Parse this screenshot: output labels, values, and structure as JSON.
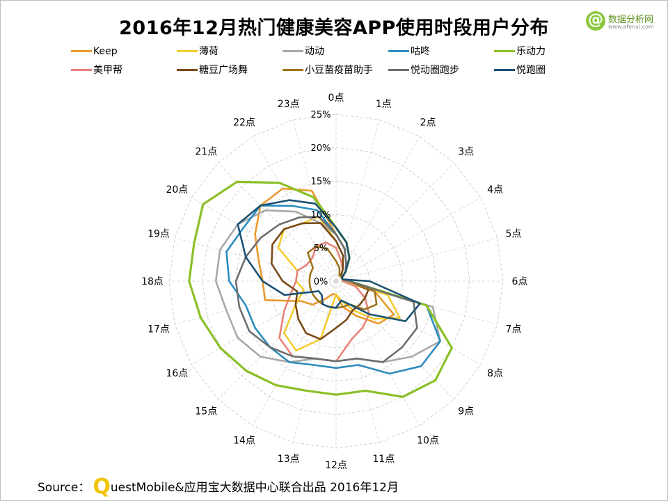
{
  "title": "2016年12月热门健康美容APP使用时段用户分布",
  "brand": {
    "name": "数据分析网",
    "url": "www.afenxi.com",
    "accent": "#8dc63f",
    "icon": "at-sign-icon"
  },
  "source": {
    "prefix": "Source：",
    "q_letter": "Q",
    "rest": "uestMobile&应用宝大数据中心联合出品 2016年12月",
    "q_color": "#f2c400"
  },
  "chart_data": {
    "type": "radar",
    "categories": [
      "0点",
      "1点",
      "2点",
      "3点",
      "4点",
      "5点",
      "6点",
      "7点",
      "8点",
      "9点",
      "10点",
      "11点",
      "12点",
      "13点",
      "14点",
      "15点",
      "16点",
      "17点",
      "18点",
      "19点",
      "20点",
      "21点",
      "22点",
      "23点"
    ],
    "radial_ticks": [
      "0%",
      "5%",
      "10%",
      "15%",
      "20%",
      "25%"
    ],
    "rmax": 25,
    "grid": true,
    "legend": "top",
    "series": [
      {
        "name": "Keep",
        "color": "#e99a2c",
        "values": [
          7,
          5,
          3,
          2,
          1,
          1,
          1,
          6,
          10,
          9,
          6,
          4,
          2,
          2,
          3,
          5,
          6,
          11,
          11,
          12,
          14,
          16,
          16,
          14
        ]
      },
      {
        "name": "薄荷",
        "color": "#f5cc2e",
        "values": [
          6,
          4,
          2,
          1,
          1,
          1,
          1,
          8,
          11,
          8,
          5,
          3,
          2,
          9,
          12,
          11,
          7,
          5,
          6,
          6,
          10,
          11,
          10,
          10
        ]
      },
      {
        "name": "动动",
        "color": "#a8a8a8",
        "values": [
          7,
          5,
          3,
          2,
          1,
          1,
          2,
          15,
          18,
          16,
          14,
          12,
          12,
          12,
          14,
          16,
          17,
          17,
          18,
          18,
          17,
          15,
          12,
          9
        ]
      },
      {
        "name": "咕咚",
        "color": "#2b8cbf",
        "values": [
          7,
          5,
          3,
          2,
          1,
          1,
          2,
          14,
          18,
          18,
          16,
          13,
          13,
          13,
          14,
          14,
          14,
          14,
          16,
          17,
          16,
          16,
          13,
          11
        ]
      },
      {
        "name": "乐动力",
        "color": "#8cbf26",
        "values": [
          8,
          6,
          4,
          2,
          1,
          1,
          2,
          14,
          20,
          21,
          20,
          17,
          17,
          17,
          18,
          19,
          20,
          21,
          22,
          22,
          23,
          21,
          17,
          13
        ]
      },
      {
        "name": "美甲帮",
        "color": "#e8837a",
        "values": [
          5,
          3,
          2,
          1,
          1,
          1,
          1,
          3,
          5,
          7,
          8,
          9,
          12,
          12,
          13,
          12,
          9,
          7,
          6,
          6,
          5,
          5,
          6,
          6
        ]
      },
      {
        "name": "糖豆广场舞",
        "color": "#7a4a18",
        "values": [
          6,
          4,
          2,
          1,
          1,
          1,
          2,
          5,
          5,
          5,
          5,
          6,
          7,
          9,
          9,
          8,
          7,
          6,
          8,
          10,
          11,
          11,
          10,
          9
        ]
      },
      {
        "name": "小豆苗疫苗助手",
        "color": "#a0741c",
        "values": [
          3,
          2,
          1,
          1,
          1,
          1,
          2,
          6,
          7,
          6,
          4,
          4,
          4,
          4,
          4,
          4,
          4,
          4,
          4,
          4,
          4,
          6,
          6,
          5
        ]
      },
      {
        "name": "悦动圈跑步",
        "color": "#6e6e6e",
        "values": [
          7,
          5,
          3,
          2,
          1,
          1,
          2,
          12,
          14,
          14,
          14,
          12,
          12,
          12,
          13,
          14,
          15,
          15,
          15,
          14,
          13,
          12,
          11,
          10
        ]
      },
      {
        "name": "悦跑圈",
        "color": "#1a5173",
        "values": [
          8,
          6,
          4,
          2,
          1,
          1,
          5,
          13,
          12,
          7,
          4,
          3,
          4,
          4,
          4,
          3,
          3,
          8,
          11,
          14,
          17,
          16,
          14,
          12
        ]
      }
    ]
  }
}
